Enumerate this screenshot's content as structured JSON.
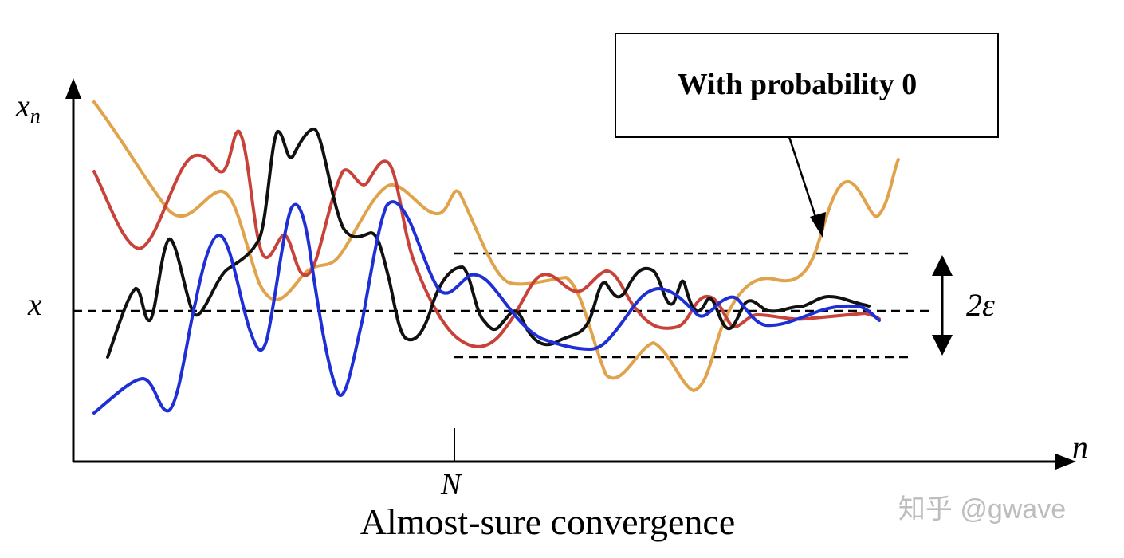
{
  "figure": {
    "y_axis_label": "x",
    "y_axis_label_sub": "n",
    "x_axis_label": "n",
    "limit_label": "x",
    "n_label": "N",
    "epsilon_label": "2ε",
    "callout_text": "With probability 0",
    "caption": "Almost-sure convergence",
    "watermark": "知乎 @gwave"
  },
  "colors": {
    "axis": "#000000",
    "black_path": "#111111",
    "red_path": "#c8423a",
    "blue_path": "#1f2fd6",
    "orange_path": "#e0a24a",
    "watermark": "#bdbdbd"
  }
}
